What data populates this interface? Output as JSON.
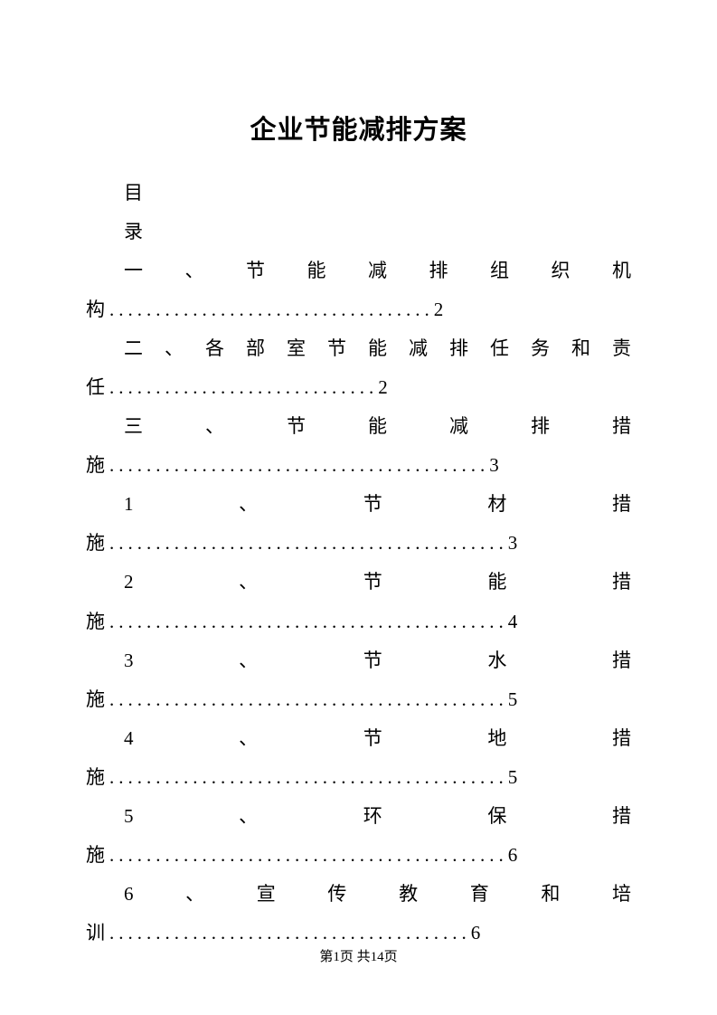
{
  "title": "企业节能减排方案",
  "toc_header_1": "目",
  "toc_header_2": "录",
  "entries": [
    {
      "text": "一、节能减排组织机",
      "cont": "构",
      "dots": "...................................",
      "page": "2"
    },
    {
      "text": "二、各部室节能减排任务和责",
      "cont": "任",
      "dots": ".............................",
      "page": "2"
    },
    {
      "text": "三、节能减排措",
      "cont": "施",
      "dots": ".........................................",
      "page": "3"
    },
    {
      "text": "1、节材措",
      "cont": "施",
      "dots": "...........................................",
      "page": "3"
    },
    {
      "text": "2、节能措",
      "cont": "施",
      "dots": "...........................................",
      "page": "4"
    },
    {
      "text": "3、节水措",
      "cont": "施",
      "dots": "...........................................",
      "page": "5"
    },
    {
      "text": "4、节地措",
      "cont": "施",
      "dots": "...........................................",
      "page": "5"
    },
    {
      "text": "5、环保措",
      "cont": "施",
      "dots": "...........................................",
      "page": "6"
    },
    {
      "text": "6、宣传教育和培",
      "cont": "训",
      "dots": ".......................................",
      "page": "6"
    }
  ],
  "footer": {
    "prefix": "第",
    "current": "1",
    "mid": "页 共",
    "total": "14",
    "suffix": "页"
  },
  "colors": {
    "text": "#000000",
    "background": "#ffffff"
  }
}
